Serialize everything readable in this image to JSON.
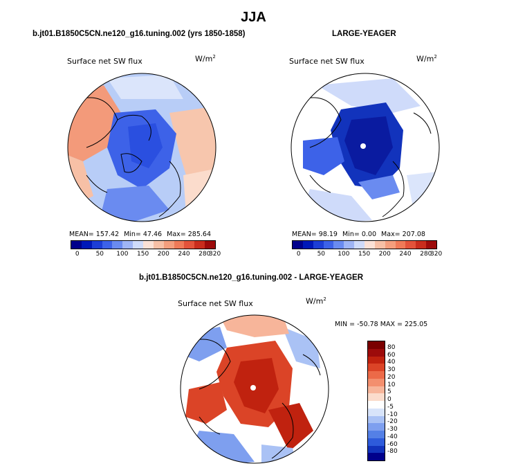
{
  "page": {
    "title": "JJA"
  },
  "panels": [
    {
      "title": "b.jt01.B1850C5CN.ne120_g16.tuning.002 (yrs 1850-1858)",
      "variable": "Surface net SW flux",
      "units_base": "W/m",
      "units_exp": "2",
      "stats": {
        "mean": "MEAN= 157.42",
        "min": "Min=   47.46",
        "max": "Max= 285.64"
      },
      "colorbar_ticks": [
        "0",
        "50",
        "100",
        "150",
        "200",
        "240",
        "280",
        "320"
      ],
      "colors": [
        "#00008b",
        "#0018b8",
        "#1d3ed6",
        "#3d62e8",
        "#6a8bf0",
        "#9fb5f5",
        "#cfdbfa",
        "#fbe1d6",
        "#f7c0a6",
        "#f49e7d",
        "#ef7a58",
        "#e3533a",
        "#c92d1d",
        "#9d0b0b"
      ]
    },
    {
      "title": "LARGE-YEAGER",
      "variable": "Surface net SW flux",
      "units_base": "W/m",
      "units_exp": "2",
      "stats": {
        "mean": "MEAN=  98.19",
        "min": "Min=    0.00",
        "max": "Max= 207.08"
      },
      "colorbar_ticks": [
        "0",
        "50",
        "100",
        "150",
        "200",
        "240",
        "280",
        "320"
      ],
      "colors": [
        "#00008b",
        "#0018b8",
        "#1d3ed6",
        "#3d62e8",
        "#6a8bf0",
        "#9fb5f5",
        "#cfdbfa",
        "#fbe1d6",
        "#f7c0a6",
        "#f49e7d",
        "#ef7a58",
        "#e3533a",
        "#c92d1d",
        "#9d0b0b"
      ]
    },
    {
      "title": "b.jt01.B1850C5CN.ne120_g16.tuning.002 - LARGE-YEAGER",
      "variable": "Surface net SW flux",
      "units_base": "W/m",
      "units_exp": "2",
      "minmax": "MIN = -50.78 MAX = 225.05",
      "colorbar_ticks": [
        "80",
        "60",
        "40",
        "30",
        "20",
        "10",
        "5",
        "0",
        "-5",
        "-10",
        "-20",
        "-30",
        "-40",
        "-60",
        "-80"
      ],
      "colors": [
        "#7a0000",
        "#9d0b0b",
        "#c0220f",
        "#db4427",
        "#ec6a48",
        "#f38f6e",
        "#f7b59a",
        "#fbdccc",
        "#ffffff",
        "#d8e4fa",
        "#aac2f5",
        "#7e9fef",
        "#5480e6",
        "#2e5bdb",
        "#1233bc",
        "#00008b"
      ]
    }
  ]
}
